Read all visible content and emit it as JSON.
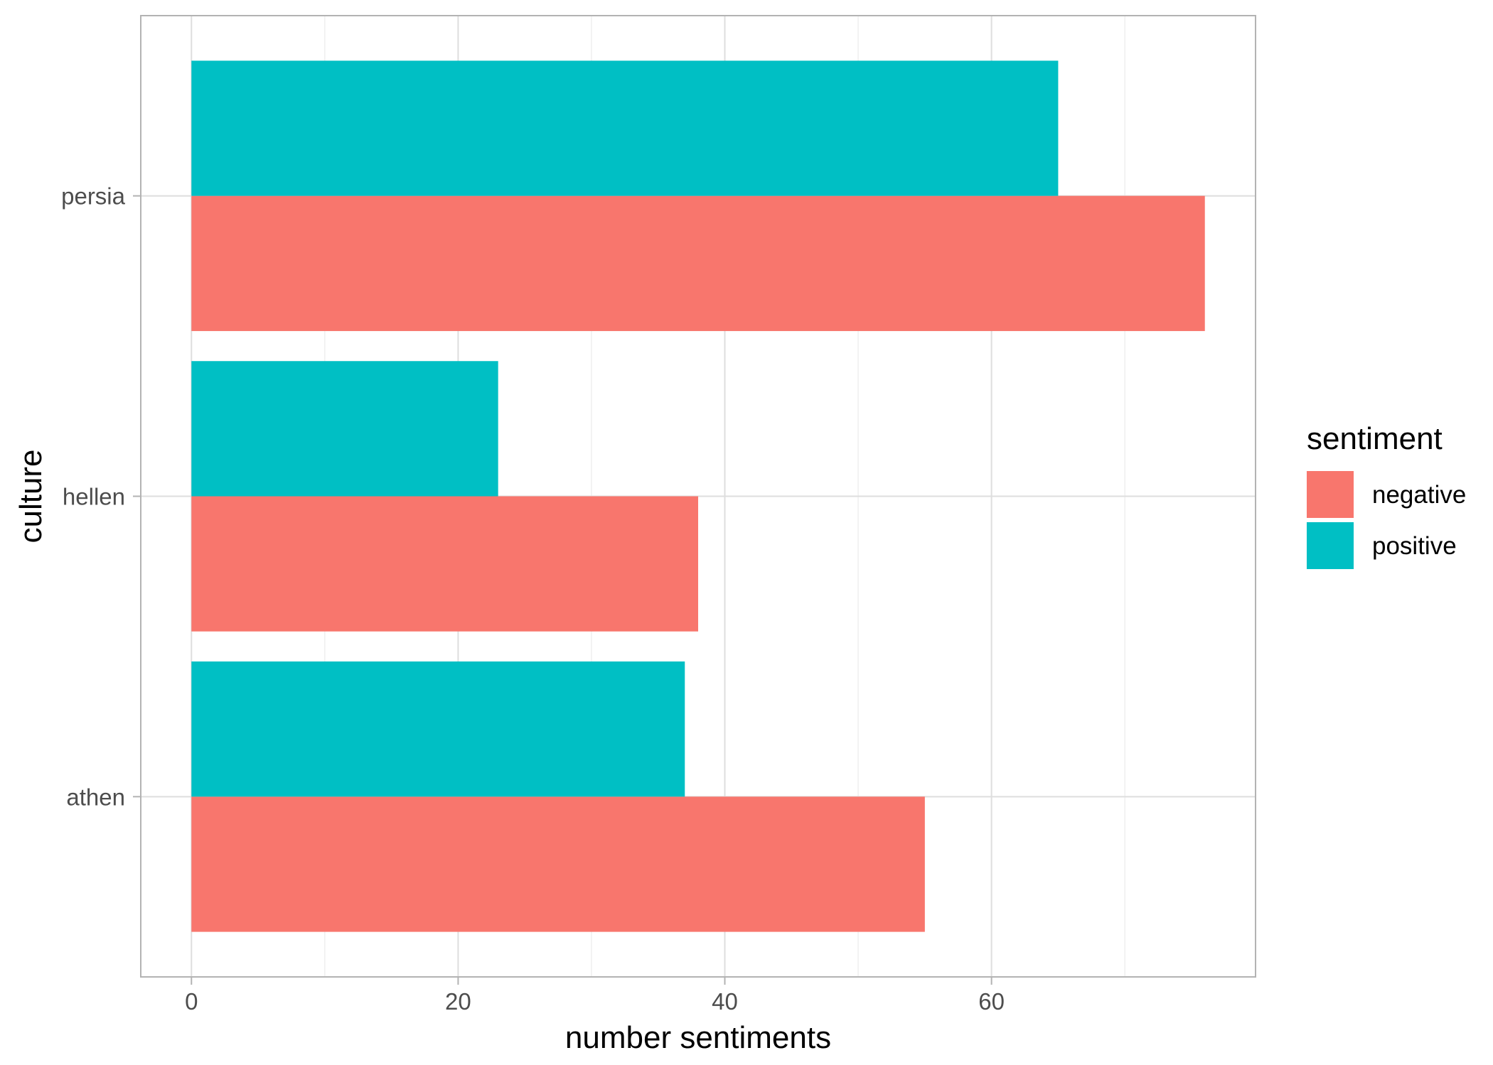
{
  "chart_data": {
    "type": "bar",
    "orientation": "horizontal",
    "categories": [
      "athen",
      "hellen",
      "persia"
    ],
    "series": [
      {
        "name": "negative",
        "values": [
          55,
          38,
          76
        ],
        "color": "#F8766D"
      },
      {
        "name": "positive",
        "values": [
          37,
          23,
          65
        ],
        "color": "#00BFC4"
      }
    ],
    "xlabel": "number sentiments",
    "ylabel": "culture",
    "xlim": [
      -3.8,
      79.8
    ],
    "x_ticks": [
      0,
      20,
      40,
      60
    ],
    "x_minor_ticks": [
      10,
      30,
      50,
      70
    ],
    "grid": true,
    "legend": {
      "title": "sentiment",
      "position": "right"
    },
    "colors": {
      "panel_border": "#b3b3b3",
      "grid_major": "#dedede",
      "grid_minor": "#efefef",
      "tick_text": "#4d4d4d"
    }
  }
}
